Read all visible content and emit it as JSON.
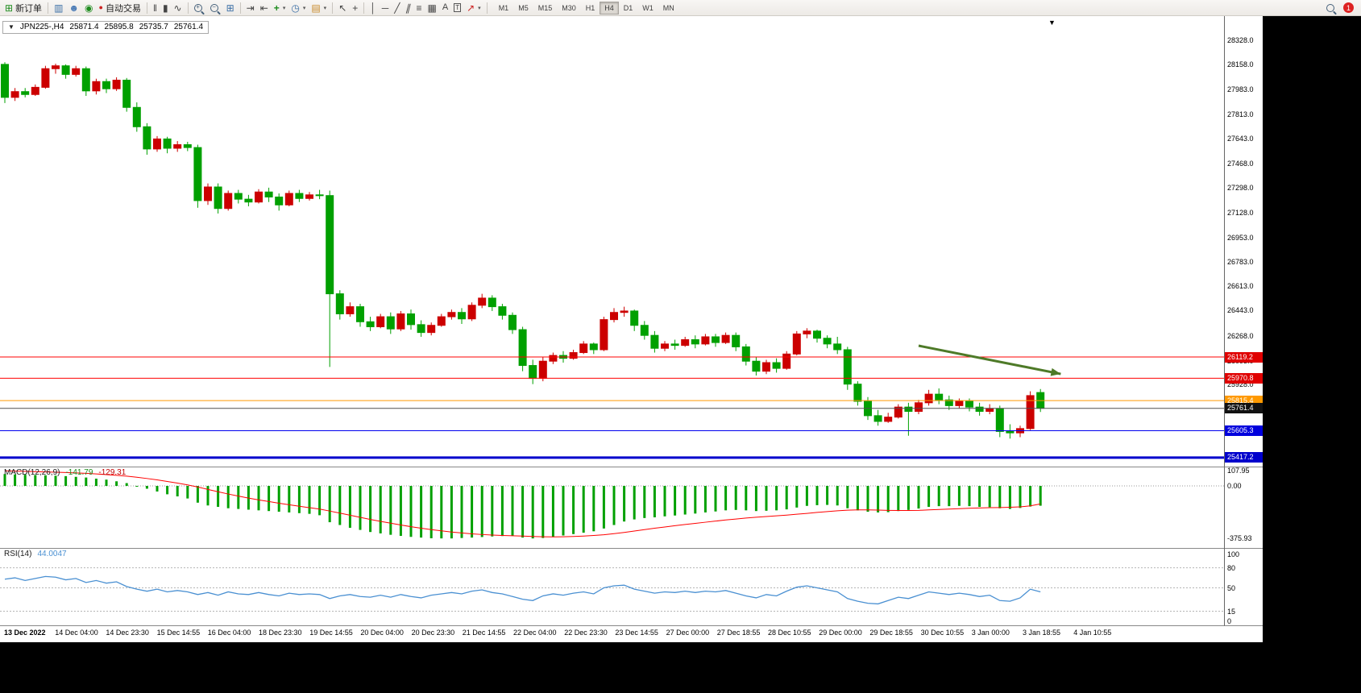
{
  "toolbar": {
    "buttons": {
      "new_order": "新订单",
      "autotrading": "自动交易"
    },
    "timeframes": [
      "M1",
      "M5",
      "M15",
      "M30",
      "H1",
      "H4",
      "D1",
      "W1",
      "MN"
    ],
    "selected_timeframe": "H4",
    "notification_count": "1",
    "icons": {
      "new_order": "⊞",
      "new_chart": "▥",
      "community": "☻",
      "help": "◉",
      "autotrading_dot": "●",
      "bar_chart": "‖",
      "candle_chart": "▮",
      "line_chart": "∿",
      "tile_windows": "⊞",
      "auto_scroll": "⇥",
      "chart_shift": "⇤",
      "indicators": "+",
      "periods": "◷",
      "templates": "▤",
      "cursor": "↖",
      "crosshair": "+",
      "vertical_line": "│",
      "horizontal_line": "─",
      "trendline": "╱",
      "channel": "∥",
      "fibonacci": "≡",
      "shapes": "▦",
      "text": "A",
      "text_label": "T",
      "arrows": "↗",
      "caret": "▾",
      "expander": "▼"
    }
  },
  "chart": {
    "expander": "▼",
    "symbol_period": "JPN225-,H4",
    "open": "25871.4",
    "high": "25895.8",
    "low": "25735.7",
    "close": "25761.4",
    "shift_marker": "▼"
  },
  "indicators_ui": {
    "macd_label": "MACD(12,26,9)",
    "macd_value": "-141.79",
    "macd_signal": "-129.31",
    "macd_scale": [
      "107.95",
      "0.00",
      "-375.93"
    ],
    "rsi_label": "RSI(14)",
    "rsi_value": "44.0047",
    "rsi_scale": [
      "100",
      "80",
      "50",
      "15",
      "0"
    ]
  },
  "colors": {
    "bull": "#cc0000",
    "bear": "#00a000",
    "macd_histogram": "#00a000",
    "macd_signal": "#ff0000",
    "rsi_line": "#4a90d2",
    "arrow": "#4e7a28",
    "level_red": "#ff0000",
    "level_orange": "#ff9900",
    "level_black": "#404040",
    "level_blue": "#0000ee"
  },
  "chart_data": {
    "type": "candlestick",
    "symbol": "JPN225-",
    "period": "H4",
    "title": "JPN225-,H4",
    "current_bar": {
      "open": 25871.4,
      "high": 25895.8,
      "low": 25735.7,
      "close": 25761.4
    },
    "price_axis": {
      "min": 25400,
      "max": 28350,
      "labels": [
        "28328.0",
        "28158.0",
        "27983.0",
        "27813.0",
        "27643.0",
        "27468.0",
        "27298.0",
        "27128.0",
        "26953.0",
        "26783.0",
        "26613.0",
        "26443.0",
        "26268.0",
        "26093.0",
        "25928.0",
        "25753.0",
        "25583.0"
      ]
    },
    "time_labels": [
      "13 Dec 2022",
      "14 Dec 04:00",
      "14 Dec 23:30",
      "15 Dec 14:55",
      "16 Dec 04:00",
      "18 Dec 23:30",
      "19 Dec 14:55",
      "20 Dec 04:00",
      "20 Dec 23:30",
      "21 Dec 14:55",
      "22 Dec 04:00",
      "22 Dec 23:30",
      "23 Dec 14:55",
      "27 Dec 00:00",
      "27 Dec 18:55",
      "28 Dec 10:55",
      "29 Dec 00:00",
      "29 Dec 18:55",
      "30 Dec 10:55",
      "3 Jan 00:00",
      "3 Jan 18:55",
      "4 Jan 10:55"
    ],
    "ohlc": [
      [
        28160,
        28175,
        27890,
        27930
      ],
      [
        27930,
        27995,
        27905,
        27970
      ],
      [
        27970,
        27995,
        27930,
        27950
      ],
      [
        27950,
        28020,
        27940,
        28000
      ],
      [
        28000,
        28150,
        27990,
        28130
      ],
      [
        28130,
        28165,
        28095,
        28150
      ],
      [
        28150,
        28160,
        28060,
        28090
      ],
      [
        28090,
        28150,
        28075,
        28130
      ],
      [
        28130,
        28145,
        27940,
        27975
      ],
      [
        27975,
        28060,
        27950,
        28040
      ],
      [
        28040,
        28060,
        27960,
        27990
      ],
      [
        27990,
        28070,
        27975,
        28050
      ],
      [
        28050,
        28065,
        27830,
        27860
      ],
      [
        27860,
        27895,
        27690,
        27725
      ],
      [
        27725,
        27750,
        27530,
        27570
      ],
      [
        27570,
        27660,
        27550,
        27640
      ],
      [
        27640,
        27655,
        27540,
        27575
      ],
      [
        27575,
        27625,
        27550,
        27600
      ],
      [
        27600,
        27620,
        27555,
        27580
      ],
      [
        27580,
        27600,
        27160,
        27210
      ],
      [
        27210,
        27330,
        27180,
        27305
      ],
      [
        27305,
        27330,
        27120,
        27155
      ],
      [
        27155,
        27280,
        27140,
        27260
      ],
      [
        27260,
        27285,
        27190,
        27220
      ],
      [
        27220,
        27250,
        27170,
        27200
      ],
      [
        27200,
        27290,
        27190,
        27270
      ],
      [
        27270,
        27300,
        27200,
        27235
      ],
      [
        27235,
        27260,
        27140,
        27180
      ],
      [
        27180,
        27280,
        27170,
        27260
      ],
      [
        27260,
        27285,
        27200,
        27225
      ],
      [
        27225,
        27270,
        27210,
        27250
      ],
      [
        27250,
        27285,
        27220,
        27245
      ],
      [
        27245,
        27280,
        26050,
        26560
      ],
      [
        26560,
        26585,
        26380,
        26420
      ],
      [
        26420,
        26500,
        26400,
        26470
      ],
      [
        26470,
        26490,
        26330,
        26365
      ],
      [
        26365,
        26400,
        26300,
        26330
      ],
      [
        26330,
        26420,
        26320,
        26400
      ],
      [
        26400,
        26430,
        26280,
        26315
      ],
      [
        26315,
        26440,
        26300,
        26420
      ],
      [
        26420,
        26450,
        26310,
        26345
      ],
      [
        26345,
        26375,
        26260,
        26290
      ],
      [
        26290,
        26360,
        26270,
        26340
      ],
      [
        26340,
        26420,
        26330,
        26400
      ],
      [
        26400,
        26450,
        26380,
        26430
      ],
      [
        26430,
        26460,
        26350,
        26385
      ],
      [
        26385,
        26500,
        26370,
        26480
      ],
      [
        26480,
        26560,
        26460,
        26530
      ],
      [
        26530,
        26550,
        26440,
        26470
      ],
      [
        26470,
        26490,
        26380,
        26410
      ],
      [
        26410,
        26430,
        26280,
        26310
      ],
      [
        26310,
        26330,
        26020,
        26060
      ],
      [
        26060,
        26100,
        25930,
        25970
      ],
      [
        25970,
        26120,
        25950,
        26090
      ],
      [
        26090,
        26150,
        26070,
        26130
      ],
      [
        26130,
        26160,
        26080,
        26110
      ],
      [
        26110,
        26170,
        26100,
        26150
      ],
      [
        26150,
        26230,
        26140,
        26210
      ],
      [
        26210,
        26220,
        26140,
        26170
      ],
      [
        26170,
        26400,
        26160,
        26380
      ],
      [
        26380,
        26460,
        26360,
        26430
      ],
      [
        26430,
        26470,
        26400,
        26440
      ],
      [
        26440,
        26450,
        26300,
        26340
      ],
      [
        26340,
        26370,
        26240,
        26270
      ],
      [
        26270,
        26300,
        26150,
        26180
      ],
      [
        26180,
        26230,
        26160,
        26210
      ],
      [
        26210,
        26240,
        26170,
        26200
      ],
      [
        26200,
        26260,
        26190,
        26240
      ],
      [
        26240,
        26270,
        26180,
        26210
      ],
      [
        26210,
        26280,
        26200,
        26260
      ],
      [
        26260,
        26280,
        26190,
        26220
      ],
      [
        26220,
        26290,
        26210,
        26270
      ],
      [
        26270,
        26290,
        26160,
        26190
      ],
      [
        26190,
        26210,
        26060,
        26090
      ],
      [
        26090,
        26120,
        25990,
        26020
      ],
      [
        26020,
        26100,
        26000,
        26080
      ],
      [
        26080,
        26110,
        26010,
        26040
      ],
      [
        26040,
        26160,
        26030,
        26140
      ],
      [
        26140,
        26300,
        26130,
        26280
      ],
      [
        26280,
        26320,
        26250,
        26300
      ],
      [
        26300,
        26310,
        26220,
        26250
      ],
      [
        26250,
        26270,
        26180,
        26210
      ],
      [
        26210,
        26260,
        26140,
        26170
      ],
      [
        26170,
        26190,
        25890,
        25930
      ],
      [
        25930,
        25950,
        25780,
        25810
      ],
      [
        25810,
        25840,
        25680,
        25710
      ],
      [
        25710,
        25750,
        25640,
        25670
      ],
      [
        25670,
        25730,
        25660,
        25700
      ],
      [
        25700,
        25790,
        25690,
        25770
      ],
      [
        25770,
        25800,
        25570,
        25740
      ],
      [
        25740,
        25820,
        25720,
        25800
      ],
      [
        25800,
        25890,
        25780,
        25860
      ],
      [
        25860,
        25900,
        25790,
        25820
      ],
      [
        25820,
        25850,
        25750,
        25780
      ],
      [
        25780,
        25830,
        25760,
        25810
      ],
      [
        25810,
        25830,
        25740,
        25770
      ],
      [
        25770,
        25800,
        25710,
        25740
      ],
      [
        25740,
        25790,
        25720,
        25760
      ],
      [
        25760,
        25780,
        25560,
        25600
      ],
      [
        25600,
        25650,
        25550,
        25590
      ],
      [
        25590,
        25640,
        25560,
        25620
      ],
      [
        25620,
        25880,
        25610,
        25850
      ],
      [
        25871.4,
        25895.8,
        25735.7,
        25761.4
      ]
    ],
    "level_lines": [
      {
        "price": 26119.2,
        "label": "26119.2",
        "color": "#ff0000",
        "badge": "#e00000",
        "width": 1
      },
      {
        "price": 25970.8,
        "label": "25970.8",
        "color": "#ff0000",
        "badge": "#e00000",
        "width": 1
      },
      {
        "price": 25815.4,
        "label": "25815.4",
        "color": "#ff9900",
        "badge": "#ff9900",
        "width": 1
      },
      {
        "price": 25761.4,
        "label": "25761.4",
        "color": "#505050",
        "badge": "#111111",
        "width": 1
      },
      {
        "price": 25605.3,
        "label": "25605.3",
        "color": "#0000ee",
        "badge": "#0000dd",
        "width": 1
      },
      {
        "price": 25417.2,
        "label": "25417.2",
        "color": "#0000cc",
        "badge": "#0000cc",
        "width": 3
      }
    ],
    "indicators": [
      {
        "name": "MACD",
        "params": "12,26,9",
        "current": {
          "macd": -141.79,
          "signal": -129.31
        },
        "scale": [
          107.95,
          0,
          -375.93
        ],
        "histogram": [
          85,
          82,
          80,
          78,
          76,
          73,
          70,
          65,
          60,
          52,
          45,
          33,
          20,
          0,
          -20,
          -40,
          -60,
          -75,
          -90,
          -120,
          -140,
          -150,
          -160,
          -165,
          -170,
          -175,
          -180,
          -185,
          -190,
          -195,
          -200,
          -210,
          -260,
          -280,
          -300,
          -315,
          -330,
          -340,
          -350,
          -358,
          -365,
          -370,
          -375,
          -376,
          -376,
          -373,
          -370,
          -366,
          -362,
          -359,
          -358,
          -370,
          -376,
          -373,
          -365,
          -355,
          -345,
          -335,
          -325,
          -305,
          -280,
          -255,
          -240,
          -230,
          -225,
          -218,
          -212,
          -205,
          -198,
          -190,
          -183,
          -175,
          -172,
          -175,
          -180,
          -178,
          -175,
          -168,
          -155,
          -143,
          -138,
          -136,
          -140,
          -160,
          -175,
          -185,
          -190,
          -188,
          -180,
          -172,
          -162,
          -150,
          -145,
          -145,
          -143,
          -145,
          -150,
          -152,
          -160,
          -165,
          -158,
          -148,
          -141.79
        ],
        "signal_line": [
          108,
          106,
          104,
          102,
          100,
          98,
          96,
          93,
          90,
          86,
          81,
          76,
          70,
          62,
          53,
          43,
          32,
          20,
          7,
          -8,
          -25,
          -42,
          -58,
          -73,
          -87,
          -100,
          -112,
          -124,
          -135,
          -146,
          -156,
          -166,
          -180,
          -195,
          -210,
          -225,
          -240,
          -254,
          -267,
          -280,
          -292,
          -303,
          -313,
          -322,
          -330,
          -337,
          -343,
          -348,
          -352,
          -355,
          -357,
          -359,
          -362,
          -364,
          -365,
          -364,
          -362,
          -359,
          -355,
          -350,
          -342,
          -333,
          -323,
          -313,
          -303,
          -294,
          -285,
          -276,
          -268,
          -260,
          -252,
          -244,
          -237,
          -230,
          -224,
          -219,
          -214,
          -209,
          -203,
          -197,
          -190,
          -184,
          -178,
          -174,
          -172,
          -172,
          -173,
          -175,
          -176,
          -176,
          -175,
          -172,
          -169,
          -166,
          -163,
          -160,
          -158,
          -156,
          -155,
          -153,
          -150,
          -143,
          -129.31
        ]
      },
      {
        "name": "RSI",
        "params": "14",
        "current": 44.0047,
        "scale": [
          100,
          80,
          50,
          15,
          0
        ],
        "levels": [
          80,
          50,
          15
        ],
        "values": [
          63,
          65,
          61,
          64,
          67,
          66,
          62,
          64,
          58,
          61,
          57,
          59,
          52,
          48,
          45,
          48,
          44,
          46,
          44,
          40,
          43,
          39,
          44,
          41,
          40,
          43,
          40,
          38,
          42,
          40,
          41,
          40,
          34,
          38,
          40,
          37,
          36,
          39,
          36,
          40,
          37,
          35,
          39,
          41,
          43,
          41,
          45,
          47,
          43,
          41,
          37,
          33,
          31,
          38,
          41,
          39,
          42,
          44,
          41,
          50,
          53,
          54,
          48,
          45,
          42,
          44,
          43,
          45,
          43,
          45,
          44,
          46,
          42,
          38,
          35,
          40,
          38,
          45,
          51,
          53,
          50,
          47,
          44,
          34,
          30,
          27,
          26,
          31,
          36,
          34,
          39,
          44,
          42,
          40,
          42,
          40,
          37,
          39,
          31,
          30,
          35,
          48,
          44.0047
        ]
      }
    ],
    "annotations": [
      {
        "type": "arrow",
        "from_bar": 90,
        "from_price": 26198,
        "to_bar": 104,
        "to_price": 26001,
        "color": "#4e7a28"
      }
    ]
  }
}
